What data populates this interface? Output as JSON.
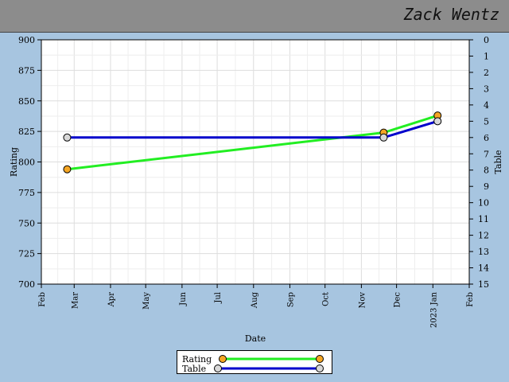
{
  "header": {
    "player_name": "Zack Wentz"
  },
  "chart_data": {
    "type": "line",
    "xlabel": "Date",
    "ylabel_left": "Rating",
    "ylabel_right": "Table",
    "x_ticks": [
      "Feb",
      "Mar",
      "Apr",
      "May",
      "Jun",
      "Jul",
      "Aug",
      "Sep",
      "Oct",
      "Nov",
      "Dec",
      "2023 Jan",
      "Feb"
    ],
    "y_left_ticks": [
      700,
      725,
      750,
      775,
      800,
      825,
      850,
      875,
      900
    ],
    "y_left_range": [
      700,
      900
    ],
    "y_right_ticks": [
      0,
      1,
      2,
      3,
      4,
      5,
      6,
      7,
      8,
      9,
      10,
      11,
      12,
      13,
      14,
      15
    ],
    "y_right_range": [
      0,
      15
    ],
    "y_right_inverted": true,
    "grid": true,
    "legend_position": "bottom-center",
    "series": [
      {
        "name": "Rating",
        "axis": "left",
        "color": "#22ee22",
        "marker_color": "#f5a623",
        "points": [
          {
            "x": "2022-02-23",
            "y": 794
          },
          {
            "x": "2022-11-20",
            "y": 824
          },
          {
            "x": "2023-01-05",
            "y": 838
          }
        ]
      },
      {
        "name": "Table",
        "axis": "right",
        "color": "#0000cc",
        "marker_color": "#d8d8d8",
        "points": [
          {
            "x": "2022-02-23",
            "y": 6
          },
          {
            "x": "2022-11-20",
            "y": 6
          },
          {
            "x": "2023-01-05",
            "y": 5
          }
        ]
      }
    ]
  }
}
